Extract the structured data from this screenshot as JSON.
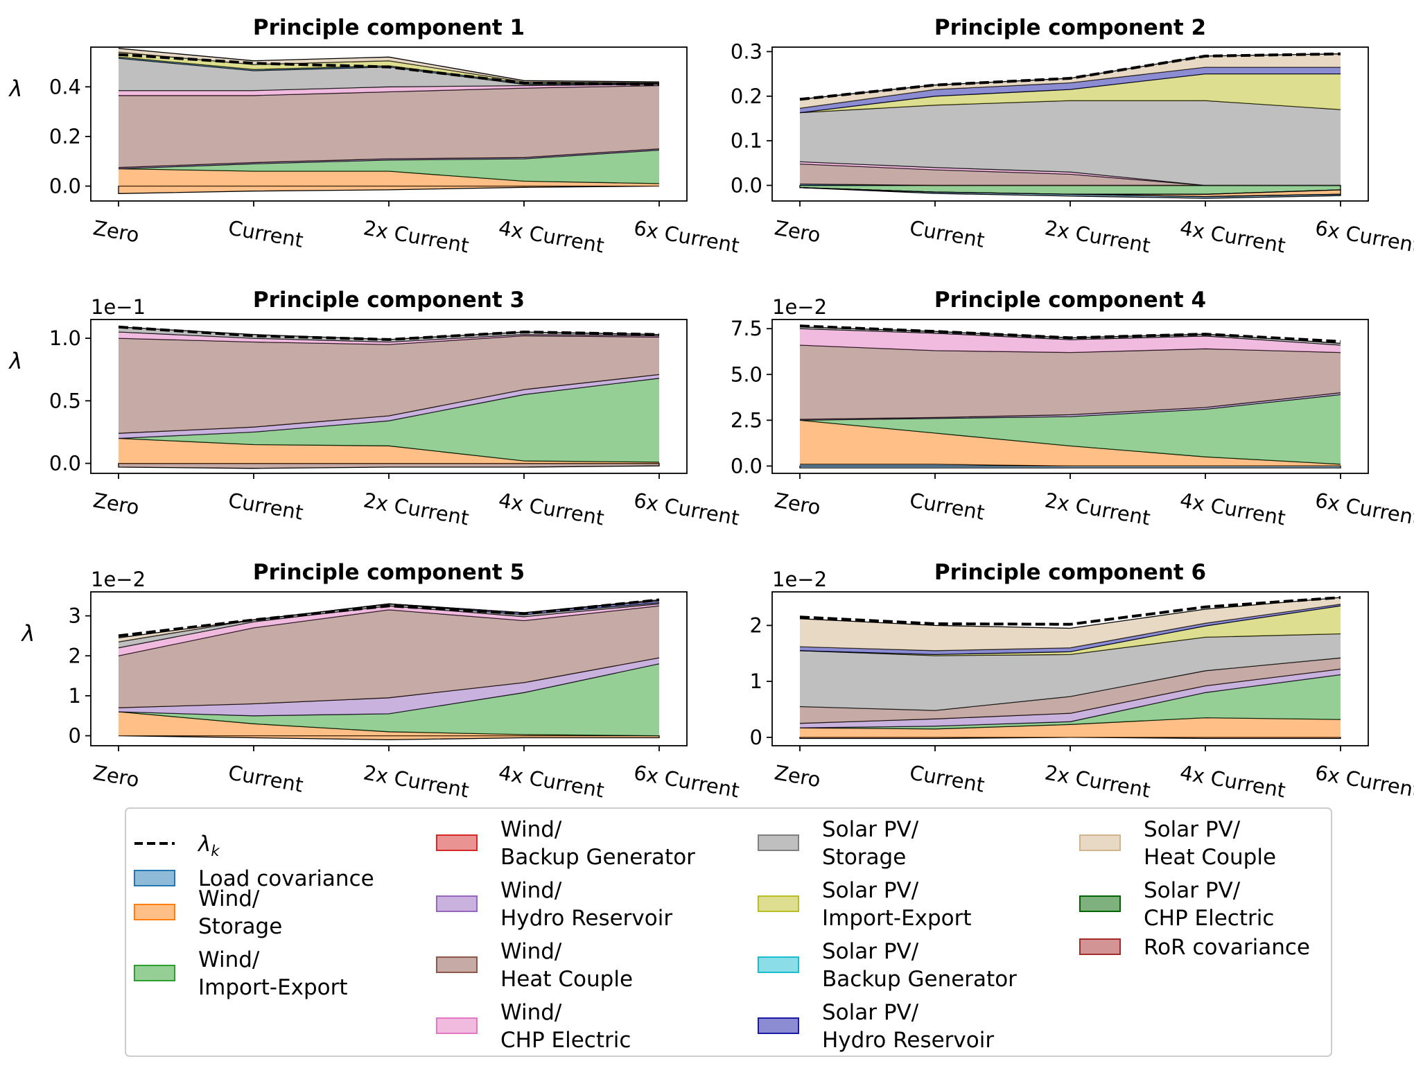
{
  "categories": [
    "Zero",
    "Current",
    "2x Current",
    "4x Current",
    "6x Current"
  ],
  "y_axis_symbol": "λ",
  "legend": {
    "lambda_label": "λ",
    "lambda_sub": "k",
    "entries": [
      {
        "key": "load",
        "lines": [
          "Load covariance"
        ],
        "color": "#1f77b4"
      },
      {
        "key": "w_sto",
        "lines": [
          "Wind/",
          "Storage"
        ],
        "color": "#ff7f0e"
      },
      {
        "key": "w_ie",
        "lines": [
          "Wind/",
          "Import-Export"
        ],
        "color": "#2ca02c"
      },
      {
        "key": "w_bg",
        "lines": [
          "Wind/",
          "Backup Generator"
        ],
        "color": "#d62728"
      },
      {
        "key": "w_hr",
        "lines": [
          "Wind/",
          "Hydro Reservoir"
        ],
        "color": "#9467bd"
      },
      {
        "key": "w_hc",
        "lines": [
          "Wind/",
          "Heat Couple"
        ],
        "color": "#8c564b"
      },
      {
        "key": "w_chp",
        "lines": [
          "Wind/",
          "CHP Electric"
        ],
        "color": "#e377c2"
      },
      {
        "key": "s_sto",
        "lines": [
          "Solar PV/",
          "Storage"
        ],
        "color": "#7f7f7f"
      },
      {
        "key": "s_ie",
        "lines": [
          "Solar PV/",
          "Import-Export"
        ],
        "color": "#bcbd22"
      },
      {
        "key": "s_bg",
        "lines": [
          "Solar PV/",
          "Backup Generator"
        ],
        "color": "#17becf"
      },
      {
        "key": "s_hr",
        "lines": [
          "Solar PV/",
          "Hydro Reservoir"
        ],
        "color": "#1a1aa6"
      },
      {
        "key": "s_hc",
        "lines": [
          "Solar PV/",
          "Heat Couple"
        ],
        "color": "#d2b48c"
      },
      {
        "key": "s_chp",
        "lines": [
          "Solar PV/",
          "CHP Electric"
        ],
        "color": "#006400"
      },
      {
        "key": "ror",
        "lines": [
          "RoR covariance"
        ],
        "color": "#a52a2a"
      }
    ]
  },
  "chart_data": [
    {
      "type": "area",
      "title": "Principle component 1",
      "multiplier": "",
      "ylim": [
        -0.06,
        0.56
      ],
      "yticks": [
        0.0,
        0.2,
        0.4
      ],
      "tick_labels": [
        "0.0",
        "0.2",
        "0.4"
      ],
      "ylabel": "λ",
      "series": [
        {
          "key": "w_sto",
          "values": [
            0.07,
            0.06,
            0.06,
            0.02,
            0.01
          ],
          "neg": [
            -0.03,
            -0.02,
            -0.015,
            -0.005,
            0.0
          ]
        },
        {
          "key": "w_ie",
          "values": [
            0.0,
            0.03,
            0.045,
            0.09,
            0.135
          ]
        },
        {
          "key": "w_hr",
          "values": [
            0.005,
            0.005,
            0.005,
            0.005,
            0.005
          ]
        },
        {
          "key": "w_hc",
          "values": [
            0.29,
            0.27,
            0.27,
            0.28,
            0.255
          ]
        },
        {
          "key": "w_chp",
          "values": [
            0.02,
            0.02,
            0.02,
            0.01,
            0.005
          ]
        },
        {
          "key": "s_sto",
          "values": [
            0.13,
            0.08,
            0.08,
            0.005,
            0.003
          ]
        },
        {
          "key": "load",
          "values": [
            0.005,
            0.005,
            0.005,
            0.005,
            0.002
          ]
        },
        {
          "key": "s_ie",
          "values": [
            0.02,
            0.02,
            0.02,
            0.005,
            0.002
          ]
        },
        {
          "key": "s_hc",
          "values": [
            0.015,
            0.015,
            0.015,
            0.005,
            0.003
          ]
        }
      ],
      "total": [
        0.53,
        0.495,
        0.48,
        0.415,
        0.41
      ]
    },
    {
      "type": "area",
      "title": "Principle component 2",
      "multiplier": "",
      "ylim": [
        -0.035,
        0.31
      ],
      "yticks": [
        0.0,
        0.1,
        0.2,
        0.3
      ],
      "tick_labels": [
        "0.0",
        "0.1",
        "0.2",
        "0.3"
      ],
      "ylabel": "",
      "series": [
        {
          "key": "w_ie",
          "values": [
            0.0,
            0.0,
            0.0,
            0.0,
            0.0
          ],
          "neg": [
            -0.005,
            -0.015,
            -0.02,
            -0.02,
            -0.01
          ]
        },
        {
          "key": "w_sto",
          "values": [
            0.0,
            0.0,
            0.0,
            0.0,
            0.0
          ],
          "neg": [
            0.0,
            0.0,
            0.0,
            -0.005,
            -0.01
          ]
        },
        {
          "key": "load",
          "values": [
            0.003,
            0.0,
            0.0,
            0.0,
            0.0
          ],
          "neg": [
            0.0,
            -0.003,
            -0.004,
            -0.004,
            -0.003
          ]
        },
        {
          "key": "w_hc",
          "values": [
            0.045,
            0.035,
            0.025,
            0.0,
            0.0
          ]
        },
        {
          "key": "w_chp",
          "values": [
            0.005,
            0.005,
            0.005,
            0.0,
            0.0
          ]
        },
        {
          "key": "s_sto",
          "values": [
            0.11,
            0.14,
            0.16,
            0.19,
            0.17
          ]
        },
        {
          "key": "s_ie",
          "values": [
            0.0,
            0.02,
            0.025,
            0.06,
            0.08
          ]
        },
        {
          "key": "s_hr",
          "values": [
            0.01,
            0.015,
            0.015,
            0.015,
            0.015
          ]
        },
        {
          "key": "s_hc",
          "values": [
            0.02,
            0.01,
            0.01,
            0.025,
            0.03
          ]
        }
      ],
      "total": [
        0.193,
        0.225,
        0.24,
        0.29,
        0.295
      ]
    },
    {
      "type": "area",
      "title": "Principle component 3",
      "multiplier": "1e−1",
      "ylim": [
        -0.08,
        1.15
      ],
      "yticks": [
        0.0,
        0.5,
        1.0
      ],
      "tick_labels": [
        "0.0",
        "0.5",
        "1.0"
      ],
      "ylabel": "λ",
      "series": [
        {
          "key": "w_hc",
          "values": [
            0.0,
            0.0,
            0.0,
            0.0,
            0.0
          ],
          "neg": [
            -0.03,
            -0.04,
            -0.03,
            -0.03,
            -0.02
          ]
        },
        {
          "key": "w_sto",
          "values": [
            0.2,
            0.15,
            0.14,
            0.02,
            0.01
          ]
        },
        {
          "key": "w_ie",
          "values": [
            0.0,
            0.1,
            0.2,
            0.53,
            0.67
          ]
        },
        {
          "key": "w_hr",
          "values": [
            0.04,
            0.04,
            0.04,
            0.04,
            0.03
          ]
        },
        {
          "key": "w_hc",
          "values": [
            0.76,
            0.68,
            0.57,
            0.43,
            0.3
          ]
        },
        {
          "key": "w_chp",
          "values": [
            0.05,
            0.03,
            0.02,
            0.01,
            0.01
          ]
        },
        {
          "key": "s_sto",
          "values": [
            0.04,
            0.03,
            0.02,
            0.02,
            0.01
          ]
        }
      ],
      "total": [
        1.09,
        1.02,
        0.99,
        1.05,
        1.03
      ]
    },
    {
      "type": "area",
      "title": "Principle component 4",
      "multiplier": "1e−2",
      "ylim": [
        -0.4,
        8.0
      ],
      "yticks": [
        0.0,
        2.5,
        5.0,
        7.5
      ],
      "tick_labels": [
        "0.0",
        "2.5",
        "5.0",
        "7.5"
      ],
      "ylabel": "",
      "series": [
        {
          "key": "load",
          "values": [
            0.1,
            0.1,
            0.0,
            0.0,
            0.0
          ],
          "neg": [
            -0.1,
            -0.1,
            -0.1,
            -0.1,
            -0.1
          ]
        },
        {
          "key": "w_sto",
          "values": [
            2.4,
            1.7,
            1.1,
            0.5,
            0.1
          ]
        },
        {
          "key": "w_ie",
          "values": [
            0.0,
            0.8,
            1.6,
            2.6,
            3.8
          ]
        },
        {
          "key": "w_hr",
          "values": [
            0.05,
            0.05,
            0.1,
            0.1,
            0.1
          ]
        },
        {
          "key": "w_hc",
          "values": [
            4.05,
            3.65,
            3.4,
            3.2,
            2.2
          ]
        },
        {
          "key": "w_chp",
          "values": [
            0.9,
            0.95,
            0.7,
            0.7,
            0.4
          ]
        },
        {
          "key": "s_sto",
          "values": [
            0.1,
            0.1,
            0.1,
            0.1,
            0.1
          ]
        }
      ],
      "total": [
        7.65,
        7.35,
        7.0,
        7.2,
        6.8
      ]
    },
    {
      "type": "area",
      "title": "Principle component 5",
      "multiplier": "1e−2",
      "ylim": [
        -0.25,
        3.6
      ],
      "yticks": [
        0,
        1,
        2,
        3
      ],
      "tick_labels": [
        "0",
        "1",
        "2",
        "3"
      ],
      "ylabel": "λ",
      "series": [
        {
          "key": "w_sto",
          "values": [
            0.6,
            0.3,
            0.1,
            0.03,
            0.0
          ],
          "neg": [
            0.0,
            -0.05,
            -0.1,
            -0.05,
            -0.05
          ]
        },
        {
          "key": "w_ie",
          "values": [
            0.0,
            0.2,
            0.45,
            1.05,
            1.8
          ]
        },
        {
          "key": "w_hr",
          "values": [
            0.1,
            0.3,
            0.4,
            0.25,
            0.15
          ]
        },
        {
          "key": "w_hc",
          "values": [
            1.3,
            1.9,
            2.2,
            1.55,
            1.3
          ]
        },
        {
          "key": "w_chp",
          "values": [
            0.2,
            0.15,
            0.1,
            0.1,
            0.05
          ]
        },
        {
          "key": "s_sto",
          "values": [
            0.15,
            0.05,
            0.05,
            0.05,
            0.03
          ]
        },
        {
          "key": "s_hr",
          "values": [
            0.0,
            0.0,
            0.0,
            0.05,
            0.05
          ]
        },
        {
          "key": "s_hc",
          "values": [
            0.1,
            0.0,
            0.0,
            0.0,
            0.02
          ]
        }
      ],
      "total": [
        2.5,
        2.9,
        3.25,
        3.05,
        3.4
      ]
    },
    {
      "type": "area",
      "title": "Principle component 6",
      "multiplier": "1e−2",
      "ylim": [
        -0.15,
        2.6
      ],
      "yticks": [
        0,
        1,
        2
      ],
      "tick_labels": [
        "0",
        "1",
        "2"
      ],
      "ylabel": "",
      "series": [
        {
          "key": "w_sto",
          "values": [
            0.17,
            0.15,
            0.23,
            0.35,
            0.32
          ],
          "neg": [
            -0.02,
            -0.02,
            0.0,
            -0.02,
            -0.02
          ]
        },
        {
          "key": "w_ie",
          "values": [
            0.0,
            0.05,
            0.05,
            0.45,
            0.8
          ]
        },
        {
          "key": "w_hr",
          "values": [
            0.08,
            0.13,
            0.15,
            0.12,
            0.1
          ]
        },
        {
          "key": "w_hc",
          "values": [
            0.3,
            0.15,
            0.3,
            0.27,
            0.2
          ]
        },
        {
          "key": "s_sto",
          "values": [
            1.0,
            0.98,
            0.75,
            0.6,
            0.43
          ]
        },
        {
          "key": "s_ie",
          "values": [
            0.0,
            0.02,
            0.05,
            0.2,
            0.5
          ]
        },
        {
          "key": "s_hr",
          "values": [
            0.07,
            0.07,
            0.07,
            0.05,
            0.03
          ]
        },
        {
          "key": "s_hc",
          "values": [
            0.5,
            0.45,
            0.35,
            0.25,
            0.12
          ]
        }
      ],
      "total": [
        2.15,
        2.03,
        2.02,
        2.33,
        2.5
      ]
    }
  ]
}
